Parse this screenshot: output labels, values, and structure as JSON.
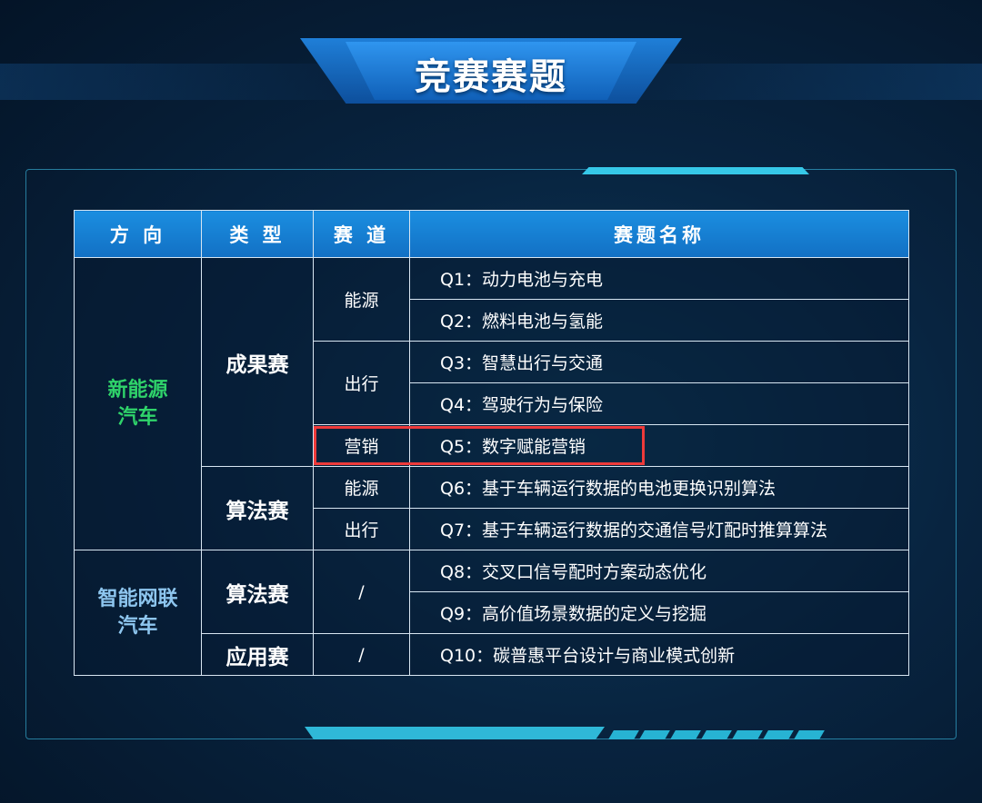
{
  "title": "竞赛赛题",
  "colors": {
    "header_bg": "#1a86d8",
    "highlight": "#ee3a3a",
    "nev_text": "#2fd36a",
    "icv_text": "#8ec6ef"
  },
  "table": {
    "headers": [
      "方 向",
      "类 型",
      "赛 道",
      "赛题名称"
    ],
    "directions": [
      "新能源\n汽车",
      "智能网联\n汽车"
    ],
    "direction_lines": [
      [
        "新能源",
        "汽车"
      ],
      [
        "智能网联",
        "汽车"
      ]
    ],
    "types": [
      "成果赛",
      "算法赛",
      "算法赛",
      "应用赛"
    ],
    "tracks": [
      "能源",
      "出行",
      "营销",
      "能源",
      "出行",
      "/",
      "/"
    ],
    "questions": [
      "Q1：动力电池与充电",
      "Q2：燃料电池与氢能",
      "Q3：智慧出行与交通",
      "Q4：驾驶行为与保险",
      "Q5：数字赋能营销",
      "Q6：基于车辆运行数据的电池更换识别算法",
      "Q7：基于车辆运行数据的交通信号灯配时推算算法",
      "Q8：交叉口信号配时方案动态优化",
      "Q9：高价值场景数据的定义与挖掘",
      "Q10：碳普惠平台设计与商业模式创新"
    ],
    "highlighted_row": "Q5"
  }
}
